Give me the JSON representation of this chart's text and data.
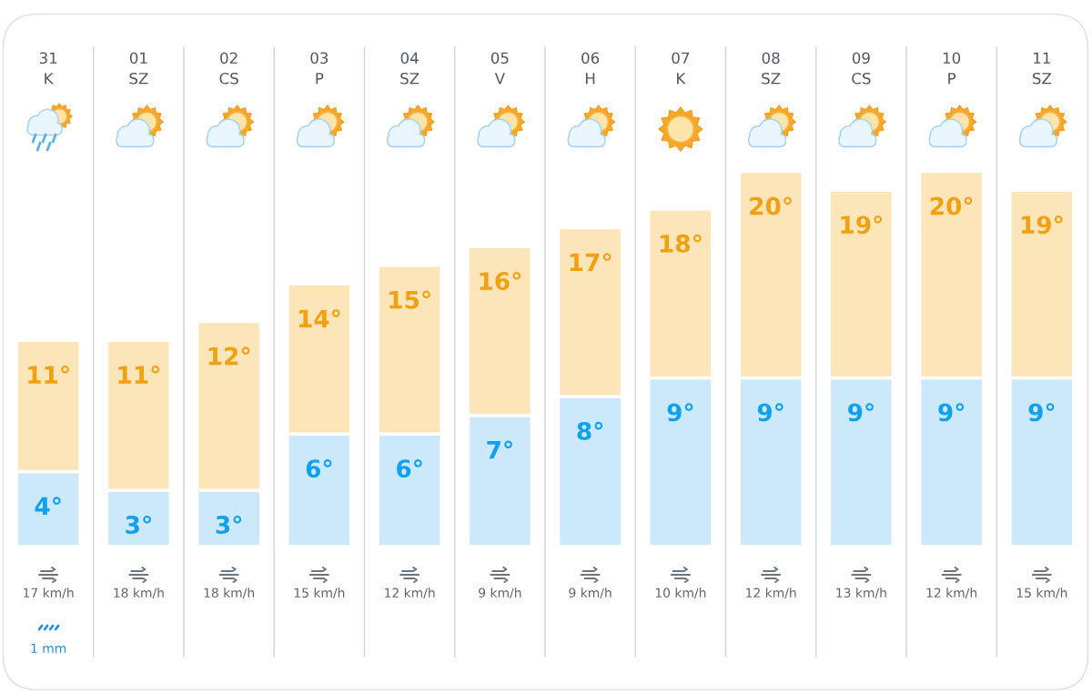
{
  "chart_data": {
    "type": "bar",
    "stacked": true,
    "grid": "x",
    "categories": [
      "31\nK",
      "01\nSZ",
      "02\nCS",
      "03\nP",
      "04\nSZ",
      "05\nV",
      "06\nH",
      "07\nK",
      "08\nSZ",
      "09\nCS",
      "10\nP",
      "11\nSZ"
    ],
    "series": [
      {
        "color": "#cbe9fa",
        "values": [
          4,
          3,
          3,
          6,
          6,
          7,
          8,
          9,
          9,
          9,
          9,
          9
        ],
        "value_labels": [
          "4°",
          "3°",
          "3°",
          "6°",
          "6°",
          "7°",
          "8°",
          "9°",
          "9°",
          "9°",
          "9°",
          "9°"
        ]
      },
      {
        "color": "#fde5ba",
        "values": [
          7,
          8,
          9,
          8,
          9,
          9,
          9,
          9,
          11,
          10,
          11,
          10
        ]
      }
    ],
    "totals": [
      "11°",
      "11°",
      "12°",
      "14°",
      "15°",
      "16°",
      "17°",
      "18°",
      "20°",
      "19°",
      "20°",
      "19°"
    ],
    "annotations": [
      "17 km/h",
      "18 km/h",
      "18 km/h",
      "15 km/h",
      "12 km/h",
      "9 km/h",
      "9 km/h",
      "10 km/h",
      "12 km/h",
      "13 km/h",
      "12 km/h",
      "15 km/h",
      "1 mm"
    ]
  }
}
